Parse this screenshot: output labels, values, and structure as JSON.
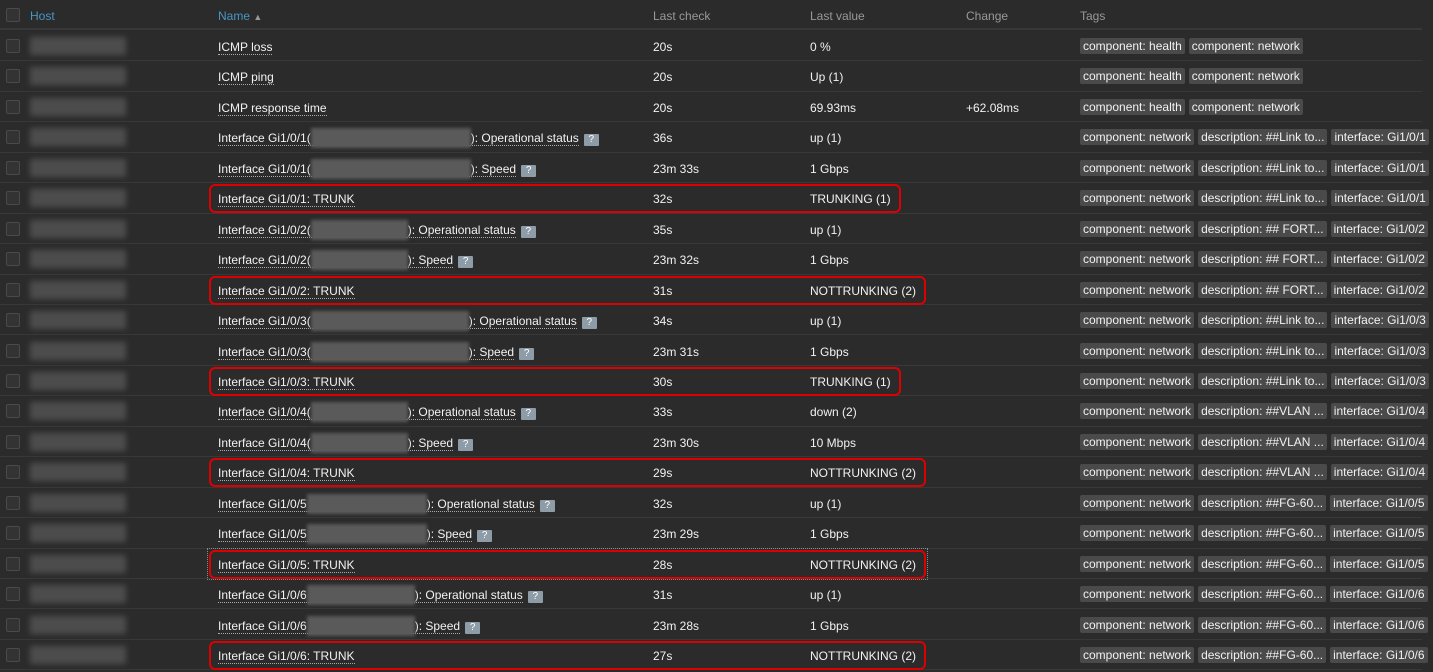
{
  "header": {
    "host": "Host",
    "name": "Name",
    "sort_icon": "▲",
    "last_check": "Last check",
    "last_value": "Last value",
    "change": "Change",
    "tags": "Tags"
  },
  "colors": {
    "highlight": "#dd0000",
    "link": "#4796c4"
  },
  "rows": [
    {
      "name": "ICMP loss",
      "check": "20s",
      "value": "0 %",
      "change": "",
      "tags": [
        "component: health",
        "component: network"
      ]
    },
    {
      "name": "ICMP ping",
      "check": "20s",
      "value": "Up (1)",
      "change": "",
      "tags": [
        "component: health",
        "component: network"
      ]
    },
    {
      "name": "ICMP response time",
      "check": "20s",
      "value": "69.93ms",
      "change": "+62.08ms",
      "tags": [
        "component: health",
        "component: network"
      ]
    },
    {
      "name": "Interface Gi1/0/1(",
      "suffix": "): Operational status",
      "help": "?",
      "check": "36s",
      "value": "up (1)",
      "tags": [
        "component: network",
        "description: ##Link to...",
        "interface: Gi1/0/1"
      ]
    },
    {
      "name": "Interface Gi1/0/1(",
      "suffix": "): Speed",
      "help": "?",
      "check": "23m 33s",
      "value": "1 Gbps",
      "tags": [
        "component: network",
        "description: ##Link to...",
        "interface: Gi1/0/1"
      ]
    },
    {
      "name": "Interface Gi1/0/1: TRUNK",
      "check": "32s",
      "value": "TRUNKING (1)",
      "highlighted": true,
      "tags": [
        "component: network",
        "description: ##Link to...",
        "interface: Gi1/0/1"
      ]
    },
    {
      "name": "Interface Gi1/0/2(",
      "suffix": "): Operational status",
      "help": "?",
      "check": "35s",
      "value": "up (1)",
      "tags": [
        "component: network",
        "description: ## FORT...",
        "interface: Gi1/0/2"
      ]
    },
    {
      "name": "Interface Gi1/0/2(",
      "suffix": "): Speed",
      "help": "?",
      "check": "23m 32s",
      "value": "1 Gbps",
      "tags": [
        "component: network",
        "description: ## FORT...",
        "interface: Gi1/0/2"
      ]
    },
    {
      "name": "Interface Gi1/0/2: TRUNK",
      "check": "31s",
      "value": "NOTTRUNKING (2)",
      "highlighted": true,
      "tags": [
        "component: network",
        "description: ## FORT...",
        "interface: Gi1/0/2"
      ]
    },
    {
      "name": "Interface Gi1/0/3(",
      "suffix": "): Operational status",
      "help": "?",
      "check": "34s",
      "value": "up (1)",
      "tags": [
        "component: network",
        "description: ##Link to...",
        "interface: Gi1/0/3"
      ]
    },
    {
      "name": "Interface Gi1/0/3(",
      "suffix": "): Speed",
      "help": "?",
      "check": "23m 31s",
      "value": "1 Gbps",
      "tags": [
        "component: network",
        "description: ##Link to...",
        "interface: Gi1/0/3"
      ]
    },
    {
      "name": "Interface Gi1/0/3: TRUNK",
      "check": "30s",
      "value": "TRUNKING (1)",
      "highlighted": true,
      "tags": [
        "component: network",
        "description: ##Link to...",
        "interface: Gi1/0/3"
      ]
    },
    {
      "name": "Interface Gi1/0/4(",
      "suffix": "): Operational status",
      "help": "?",
      "check": "33s",
      "value": "down (2)",
      "tags": [
        "component: network",
        "description: ##VLAN ...",
        "interface: Gi1/0/4"
      ]
    },
    {
      "name": "Interface Gi1/0/4(",
      "suffix": "): Speed",
      "help": "?",
      "check": "23m 30s",
      "value": "10 Mbps",
      "tags": [
        "component: network",
        "description: ##VLAN ...",
        "interface: Gi1/0/4"
      ]
    },
    {
      "name": "Interface Gi1/0/4: TRUNK",
      "check": "29s",
      "value": "NOTTRUNKING (2)",
      "highlighted": true,
      "tags": [
        "component: network",
        "description: ##VLAN ...",
        "interface: Gi1/0/4"
      ]
    },
    {
      "name": "Interface Gi1/0/5",
      "suffix": "): Operational status",
      "help": "?",
      "check": "32s",
      "value": "up (1)",
      "tags": [
        "component: network",
        "description: ##FG-60...",
        "interface: Gi1/0/5"
      ]
    },
    {
      "name": "Interface Gi1/0/5",
      "suffix": "): Speed",
      "help": "?",
      "check": "23m 29s",
      "value": "1 Gbps",
      "tags": [
        "component: network",
        "description: ##FG-60...",
        "interface: Gi1/0/5"
      ]
    },
    {
      "name": "Interface Gi1/0/5: TRUNK",
      "check": "28s",
      "value": "NOTTRUNKING (2)",
      "highlighted": true,
      "focused": true,
      "tags": [
        "component: network",
        "description: ##FG-60...",
        "interface: Gi1/0/5"
      ]
    },
    {
      "name": "Interface Gi1/0/6",
      "suffix": "): Operational status",
      "help": "?",
      "check": "31s",
      "value": "up (1)",
      "tags": [
        "component: network",
        "description: ##FG-60...",
        "interface: Gi1/0/6"
      ]
    },
    {
      "name": "Interface Gi1/0/6",
      "suffix": "): Speed",
      "help": "?",
      "check": "23m 28s",
      "value": "1 Gbps",
      "tags": [
        "component: network",
        "description: ##FG-60...",
        "interface: Gi1/0/6"
      ]
    },
    {
      "name": "Interface Gi1/0/6: TRUNK",
      "check": "27s",
      "value": "NOTTRUNKING (2)",
      "highlighted": true,
      "tags": [
        "component: network",
        "description: ##FG-60...",
        "interface: Gi1/0/6"
      ]
    }
  ]
}
